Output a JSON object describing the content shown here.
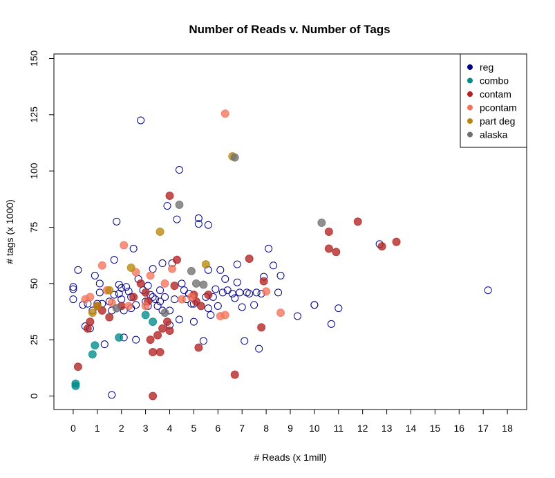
{
  "chart_data": {
    "type": "scatter",
    "title": "Number of Reads v. Number of Tags",
    "xlabel": "# Reads (x 1mill)",
    "ylabel": "# tags (x 1000)",
    "xlim": [
      -0.8,
      18.8
    ],
    "ylim": [
      -6,
      152
    ],
    "xticks": [
      0,
      1,
      2,
      3,
      4,
      5,
      6,
      7,
      8,
      9,
      10,
      11,
      12,
      13,
      14,
      15,
      16,
      17,
      18
    ],
    "yticks": [
      0,
      25,
      50,
      75,
      100,
      125,
      150
    ],
    "grid": false,
    "legend_position": "top-right",
    "legend": [
      {
        "name": "reg",
        "color": "#00008b"
      },
      {
        "name": "combo",
        "color": "#008b8b"
      },
      {
        "name": "contam",
        "color": "#b22222"
      },
      {
        "name": "pcontam",
        "color": "#f4735a"
      },
      {
        "name": "part deg",
        "color": "#b8860b"
      },
      {
        "name": "alaska",
        "color": "#707070"
      }
    ],
    "series": [
      {
        "name": "reg",
        "color": "#00008b",
        "marker": "open-circle",
        "points": [
          [
            0.0,
            48.5
          ],
          [
            0.0,
            47.5
          ],
          [
            0.0,
            43
          ],
          [
            0.2,
            56
          ],
          [
            0.4,
            40.5
          ],
          [
            0.5,
            31
          ],
          [
            0.6,
            41
          ],
          [
            0.7,
            30
          ],
          [
            0.8,
            38
          ],
          [
            0.9,
            53.5
          ],
          [
            1.0,
            41
          ],
          [
            1.1,
            46
          ],
          [
            1.1,
            50
          ],
          [
            1.2,
            41
          ],
          [
            1.3,
            23
          ],
          [
            1.5,
            42
          ],
          [
            1.6,
            38
          ],
          [
            1.7,
            45
          ],
          [
            1.7,
            60.5
          ],
          [
            1.8,
            77.5
          ],
          [
            1.9,
            45.5
          ],
          [
            1.9,
            49.5
          ],
          [
            2.0,
            48
          ],
          [
            2.0,
            43
          ],
          [
            2.1,
            26
          ],
          [
            2.1,
            38
          ],
          [
            2.2,
            48.5
          ],
          [
            2.3,
            46.5
          ],
          [
            2.4,
            44
          ],
          [
            2.4,
            39
          ],
          [
            2.5,
            65.5
          ],
          [
            2.6,
            25
          ],
          [
            2.6,
            40.5
          ],
          [
            2.7,
            52
          ],
          [
            2.8,
            122.5
          ],
          [
            2.9,
            47
          ],
          [
            3.0,
            42
          ],
          [
            3.1,
            40
          ],
          [
            3.1,
            49
          ],
          [
            3.2,
            45
          ],
          [
            3.3,
            44
          ],
          [
            3.3,
            56.5
          ],
          [
            3.4,
            43
          ],
          [
            3.5,
            40
          ],
          [
            3.6,
            42
          ],
          [
            3.6,
            47
          ],
          [
            3.7,
            59
          ],
          [
            3.7,
            38
          ],
          [
            3.8,
            44
          ],
          [
            3.9,
            84.5
          ],
          [
            4.0,
            38
          ],
          [
            4.0,
            31.5
          ],
          [
            4.1,
            59
          ],
          [
            4.2,
            43
          ],
          [
            4.3,
            78.5
          ],
          [
            4.4,
            100.5
          ],
          [
            4.4,
            34
          ],
          [
            4.5,
            50
          ],
          [
            4.6,
            47
          ],
          [
            4.7,
            43
          ],
          [
            4.8,
            45.5
          ],
          [
            4.9,
            41
          ],
          [
            5.0,
            41
          ],
          [
            5.0,
            33
          ],
          [
            5.2,
            79
          ],
          [
            5.2,
            76.5
          ],
          [
            5.4,
            24.5
          ],
          [
            5.5,
            44
          ],
          [
            5.6,
            76
          ],
          [
            5.6,
            56
          ],
          [
            5.6,
            39
          ],
          [
            5.7,
            36
          ],
          [
            5.8,
            44
          ],
          [
            5.9,
            47.5
          ],
          [
            6.0,
            40
          ],
          [
            6.1,
            56
          ],
          [
            6.2,
            46
          ],
          [
            6.3,
            52
          ],
          [
            6.4,
            47
          ],
          [
            6.6,
            45.5
          ],
          [
            6.7,
            43.5
          ],
          [
            6.8,
            58.5
          ],
          [
            6.8,
            50.5
          ],
          [
            6.9,
            46
          ],
          [
            7.0,
            39.5
          ],
          [
            7.1,
            24.5
          ],
          [
            7.2,
            46
          ],
          [
            7.3,
            45.5
          ],
          [
            7.5,
            40.5
          ],
          [
            7.6,
            46
          ],
          [
            7.7,
            21
          ],
          [
            7.8,
            45.5
          ],
          [
            7.9,
            53
          ],
          [
            8.1,
            65.5
          ],
          [
            8.3,
            58
          ],
          [
            8.5,
            46
          ],
          [
            8.6,
            53.5
          ],
          [
            9.3,
            35.5
          ],
          [
            10.0,
            40.5
          ],
          [
            10.0,
            40.5
          ],
          [
            10.7,
            32
          ],
          [
            11.0,
            39
          ],
          [
            12.7,
            67.5
          ],
          [
            17.2,
            47
          ],
          [
            1.6,
            0.5
          ]
        ]
      },
      {
        "name": "combo",
        "color": "#008b8b",
        "marker": "filled-circle",
        "points": [
          [
            0.1,
            4.5
          ],
          [
            0.1,
            5.5
          ],
          [
            0.8,
            18.5
          ],
          [
            0.9,
            22.5
          ],
          [
            1.9,
            26
          ],
          [
            3.0,
            36
          ],
          [
            3.3,
            33
          ]
        ]
      },
      {
        "name": "contam",
        "color": "#b22222",
        "marker": "filled-circle",
        "points": [
          [
            0.2,
            13
          ],
          [
            0.6,
            30
          ],
          [
            0.7,
            33
          ],
          [
            1.0,
            40
          ],
          [
            1.2,
            38
          ],
          [
            1.5,
            35
          ],
          [
            2.0,
            40
          ],
          [
            2.5,
            44
          ],
          [
            2.8,
            50
          ],
          [
            3.0,
            46
          ],
          [
            3.1,
            42
          ],
          [
            3.2,
            25
          ],
          [
            3.3,
            19.5
          ],
          [
            3.3,
            0
          ],
          [
            3.5,
            27
          ],
          [
            3.6,
            19.5
          ],
          [
            3.7,
            30
          ],
          [
            3.9,
            33
          ],
          [
            4.0,
            89
          ],
          [
            4.0,
            29
          ],
          [
            4.2,
            49
          ],
          [
            4.3,
            60.5
          ],
          [
            5.0,
            45
          ],
          [
            5.1,
            42
          ],
          [
            5.2,
            21.5
          ],
          [
            5.3,
            40
          ],
          [
            5.6,
            45
          ],
          [
            6.7,
            9.5
          ],
          [
            7.3,
            61
          ],
          [
            7.8,
            30.5
          ],
          [
            7.9,
            51
          ],
          [
            10.6,
            73
          ],
          [
            10.6,
            65.5
          ],
          [
            10.9,
            64
          ],
          [
            11.8,
            77.5
          ],
          [
            12.8,
            66.5
          ],
          [
            13.4,
            68.5
          ]
        ]
      },
      {
        "name": "pcontam",
        "color": "#f4735a",
        "marker": "filled-circle",
        "points": [
          [
            0.5,
            43
          ],
          [
            0.7,
            44
          ],
          [
            1.2,
            58
          ],
          [
            1.4,
            47
          ],
          [
            1.6,
            41.5
          ],
          [
            2.1,
            67
          ],
          [
            2.3,
            40
          ],
          [
            2.6,
            55
          ],
          [
            3.0,
            40
          ],
          [
            3.2,
            53.5
          ],
          [
            3.8,
            50
          ],
          [
            4.1,
            56.5
          ],
          [
            4.5,
            43
          ],
          [
            4.9,
            44
          ],
          [
            6.1,
            35.5
          ],
          [
            6.3,
            36
          ],
          [
            6.3,
            125.5
          ],
          [
            8.0,
            46.5
          ],
          [
            8.6,
            37
          ]
        ]
      },
      {
        "name": "part deg",
        "color": "#b8860b",
        "marker": "filled-circle",
        "points": [
          [
            0.8,
            37
          ],
          [
            1.0,
            40
          ],
          [
            1.5,
            47
          ],
          [
            2.4,
            57
          ],
          [
            3.6,
            73
          ],
          [
            5.5,
            58.5
          ],
          [
            6.6,
            106.5
          ]
        ]
      },
      {
        "name": "alaska",
        "color": "#707070",
        "marker": "filled-circle",
        "points": [
          [
            1.8,
            39
          ],
          [
            3.8,
            37
          ],
          [
            4.4,
            85
          ],
          [
            4.9,
            55.5
          ],
          [
            5.1,
            50
          ],
          [
            5.4,
            49.5
          ],
          [
            6.7,
            106
          ],
          [
            10.3,
            77
          ]
        ]
      }
    ]
  }
}
